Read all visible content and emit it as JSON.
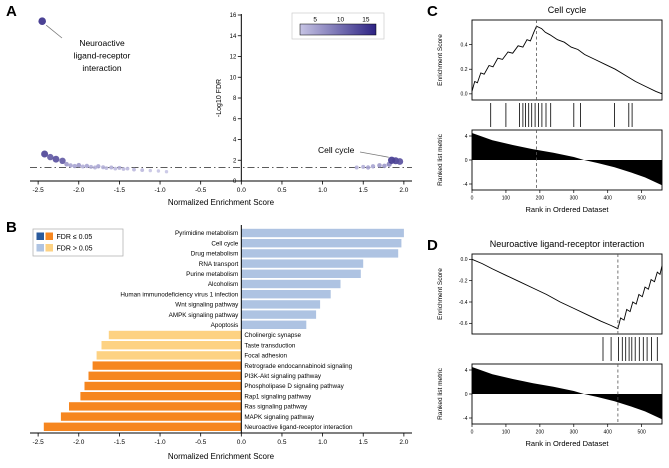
{
  "panel_letters": {
    "a": "A",
    "b": "B",
    "c": "C",
    "d": "D"
  },
  "chart_data": [
    {
      "panel": "A",
      "type": "scatter",
      "xlabel": "Normalized Enrichment Score",
      "ylabel": "-Log10 FDR",
      "xlim": [
        -2.6,
        2.1
      ],
      "ylim": [
        0,
        16
      ],
      "xticks": [
        -2.5,
        -2.0,
        -1.5,
        -1.0,
        -0.5,
        0.0,
        0.5,
        1.0,
        1.5,
        2.0
      ],
      "yticks": [
        0,
        2,
        4,
        6,
        8,
        10,
        12,
        14,
        16
      ],
      "fdr_threshold_y": 1.3,
      "colorbar": {
        "ticks": [
          5,
          10,
          15
        ],
        "range": [
          2,
          17
        ],
        "color_low": "#c6c4e4",
        "color_high": "#2d2383"
      },
      "annotations": [
        {
          "lines": [
            "Neuroactive",
            "ligand-receptor",
            "interaction"
          ],
          "point": [
            -2.45,
            15.4
          ]
        },
        {
          "lines": [
            "Cell cycle"
          ],
          "point": [
            1.85,
            2.0
          ]
        }
      ],
      "points": [
        [
          -2.45,
          15.4,
          16
        ],
        [
          -2.42,
          2.6,
          14
        ],
        [
          -2.35,
          2.3,
          12
        ],
        [
          -2.28,
          2.1,
          13
        ],
        [
          -2.2,
          1.95,
          12
        ],
        [
          -2.15,
          1.62,
          6
        ],
        [
          -2.1,
          1.5,
          5
        ],
        [
          -2.05,
          1.44,
          5
        ],
        [
          -2.0,
          1.52,
          6
        ],
        [
          -1.95,
          1.4,
          4
        ],
        [
          -1.9,
          1.46,
          5
        ],
        [
          -1.85,
          1.36,
          4
        ],
        [
          -1.8,
          1.3,
          4
        ],
        [
          -1.76,
          1.42,
          5
        ],
        [
          -1.7,
          1.32,
          4
        ],
        [
          -1.66,
          1.24,
          3
        ],
        [
          -1.6,
          1.3,
          4
        ],
        [
          -1.55,
          1.2,
          3
        ],
        [
          -1.5,
          1.26,
          4
        ],
        [
          -1.45,
          1.16,
          3
        ],
        [
          -1.4,
          1.2,
          3
        ],
        [
          -1.32,
          1.1,
          3
        ],
        [
          -1.22,
          1.05,
          3
        ],
        [
          -1.12,
          1.0,
          2
        ],
        [
          -1.02,
          0.96,
          2
        ],
        [
          -0.92,
          0.9,
          2
        ],
        [
          1.42,
          1.3,
          4
        ],
        [
          1.5,
          1.36,
          4
        ],
        [
          1.56,
          1.3,
          5
        ],
        [
          1.62,
          1.42,
          5
        ],
        [
          1.7,
          1.5,
          6
        ],
        [
          1.76,
          1.46,
          6
        ],
        [
          1.82,
          1.62,
          8
        ],
        [
          1.85,
          2.0,
          15
        ],
        [
          1.9,
          1.95,
          14
        ],
        [
          1.95,
          1.88,
          13
        ]
      ]
    },
    {
      "panel": "B",
      "type": "bar",
      "xlabel": "Normalized Enrichment Score",
      "xlim": [
        -2.6,
        2.1
      ],
      "xticks": [
        -2.5,
        -2.0,
        -1.5,
        -1.0,
        -0.5,
        0.0,
        0.5,
        1.0,
        1.5,
        2.0
      ],
      "legend": [
        {
          "label": "FDR ≤ 0.05",
          "colors": [
            "#2a5a9c",
            "#f6861f"
          ]
        },
        {
          "label": "FDR > 0.05",
          "colors": [
            "#aec3e2",
            "#fdd283"
          ]
        }
      ],
      "bars": [
        {
          "label": "Pyrimidine metabolism",
          "value": 2.0,
          "color": "#aec3e2"
        },
        {
          "label": "Cell cycle",
          "value": 1.97,
          "color": "#aec3e2"
        },
        {
          "label": "Drug metabolism",
          "value": 1.93,
          "color": "#aec3e2"
        },
        {
          "label": "RNA transport",
          "value": 1.5,
          "color": "#aec3e2"
        },
        {
          "label": "Purine metabolism",
          "value": 1.47,
          "color": "#aec3e2"
        },
        {
          "label": "Alcoholism",
          "value": 1.22,
          "color": "#aec3e2"
        },
        {
          "label": "Human immunodeficiency virus 1 infection",
          "value": 1.1,
          "color": "#aec3e2"
        },
        {
          "label": "Wnt signaling pathway",
          "value": 0.97,
          "color": "#aec3e2"
        },
        {
          "label": "AMPK signaling pathway",
          "value": 0.92,
          "color": "#aec3e2"
        },
        {
          "label": "Apoptosis",
          "value": 0.8,
          "color": "#aec3e2"
        },
        {
          "label": "Cholinergic synapse",
          "value": -1.63,
          "color": "#fdd283"
        },
        {
          "label": "Taste transduction",
          "value": -1.72,
          "color": "#fdd283"
        },
        {
          "label": "Focal adhesion",
          "value": -1.78,
          "color": "#fdd283"
        },
        {
          "label": "Retrograde endocannabinoid signaling",
          "value": -1.83,
          "color": "#f6861f"
        },
        {
          "label": "PI3K-Akt signaling pathway",
          "value": -1.88,
          "color": "#f6861f"
        },
        {
          "label": "Phospholipase D signaling pathway",
          "value": -1.93,
          "color": "#f6861f"
        },
        {
          "label": "Rap1 signaling pathway",
          "value": -1.98,
          "color": "#f6861f"
        },
        {
          "label": "Ras signaling pathway",
          "value": -2.12,
          "color": "#f6861f"
        },
        {
          "label": "MAPK signaling pathway",
          "value": -2.22,
          "color": "#f6861f"
        },
        {
          "label": "Neuroactive ligand-receptor interaction",
          "value": -2.43,
          "color": "#f6861f"
        }
      ]
    },
    {
      "panel": "C",
      "type": "gsea",
      "title": "Cell cycle",
      "ylabel_top": "Enrichment Score",
      "ylabel_bottom": "Ranked list metric",
      "xlabel": "Rank in Ordered Dataset",
      "xmax": 560,
      "xticks": [
        0,
        100,
        200,
        300,
        400,
        500
      ],
      "es_ylim": [
        -0.05,
        0.6
      ],
      "es_yticks": [
        0.0,
        0.2,
        0.4
      ],
      "metric_ylim": 5,
      "metric_yticks": [
        4,
        0,
        -4
      ],
      "dashed_line_x": 190,
      "es_curve": [
        [
          0,
          0.02
        ],
        [
          8,
          0.1
        ],
        [
          16,
          0.09
        ],
        [
          26,
          0.17
        ],
        [
          36,
          0.16
        ],
        [
          50,
          0.23
        ],
        [
          62,
          0.22
        ],
        [
          76,
          0.29
        ],
        [
          90,
          0.28
        ],
        [
          106,
          0.34
        ],
        [
          120,
          0.33
        ],
        [
          136,
          0.39
        ],
        [
          150,
          0.38
        ],
        [
          162,
          0.44
        ],
        [
          172,
          0.43
        ],
        [
          182,
          0.5
        ],
        [
          190,
          0.55
        ],
        [
          205,
          0.53
        ],
        [
          216,
          0.5
        ],
        [
          230,
          0.48
        ],
        [
          252,
          0.44
        ],
        [
          272,
          0.42
        ],
        [
          292,
          0.38
        ],
        [
          312,
          0.36
        ],
        [
          332,
          0.32
        ],
        [
          362,
          0.28
        ],
        [
          392,
          0.24
        ],
        [
          422,
          0.2
        ],
        [
          452,
          0.15
        ],
        [
          482,
          0.1
        ],
        [
          512,
          0.06
        ],
        [
          542,
          0.02
        ],
        [
          560,
          0.0
        ]
      ],
      "hits": [
        55,
        100,
        140,
        150,
        158,
        167,
        176,
        186,
        196,
        206,
        218,
        232,
        300,
        320,
        420,
        462,
        472
      ],
      "metric_profile": [
        [
          0,
          4.5
        ],
        [
          60,
          3.3
        ],
        [
          120,
          2.5
        ],
        [
          180,
          1.8
        ],
        [
          240,
          1.2
        ],
        [
          300,
          0.5
        ],
        [
          330,
          0
        ],
        [
          370,
          -0.5
        ],
        [
          420,
          -1.2
        ],
        [
          470,
          -2.1
        ],
        [
          510,
          -2.9
        ],
        [
          560,
          -4.2
        ]
      ]
    },
    {
      "panel": "D",
      "type": "gsea",
      "title": "Neuroactive ligand-receptor interaction",
      "ylabel_top": "Enrichment Score",
      "ylabel_bottom": "Ranked list metric",
      "xlabel": "Rank in Ordered Dataset",
      "xmax": 560,
      "xticks": [
        0,
        100,
        200,
        300,
        400,
        500
      ],
      "es_ylim": [
        -0.7,
        0.05
      ],
      "es_yticks": [
        0.0,
        -0.2,
        -0.4,
        -0.6
      ],
      "metric_ylim": 5,
      "metric_yticks": [
        4,
        0,
        -4
      ],
      "dashed_line_x": 430,
      "es_curve": [
        [
          0,
          0
        ],
        [
          30,
          -0.04
        ],
        [
          60,
          -0.09
        ],
        [
          100,
          -0.15
        ],
        [
          140,
          -0.21
        ],
        [
          180,
          -0.27
        ],
        [
          220,
          -0.33
        ],
        [
          260,
          -0.4
        ],
        [
          300,
          -0.46
        ],
        [
          340,
          -0.52
        ],
        [
          380,
          -0.58
        ],
        [
          410,
          -0.62
        ],
        [
          430,
          -0.65
        ],
        [
          438,
          -0.55
        ],
        [
          448,
          -0.57
        ],
        [
          456,
          -0.47
        ],
        [
          466,
          -0.49
        ],
        [
          474,
          -0.4
        ],
        [
          484,
          -0.42
        ],
        [
          492,
          -0.33
        ],
        [
          502,
          -0.35
        ],
        [
          510,
          -0.26
        ],
        [
          520,
          -0.28
        ],
        [
          528,
          -0.19
        ],
        [
          538,
          -0.21
        ],
        [
          546,
          -0.12
        ],
        [
          554,
          -0.14
        ],
        [
          560,
          -0.06
        ]
      ],
      "hits": [
        386,
        410,
        432,
        443,
        453,
        463,
        471,
        481,
        493,
        505,
        516,
        529,
        546
      ],
      "metric_profile": [
        [
          0,
          4.5
        ],
        [
          60,
          3.3
        ],
        [
          120,
          2.5
        ],
        [
          180,
          1.8
        ],
        [
          240,
          1.2
        ],
        [
          300,
          0.5
        ],
        [
          330,
          0
        ],
        [
          370,
          -0.5
        ],
        [
          420,
          -1.2
        ],
        [
          470,
          -2.1
        ],
        [
          510,
          -2.9
        ],
        [
          560,
          -4.2
        ]
      ]
    }
  ]
}
